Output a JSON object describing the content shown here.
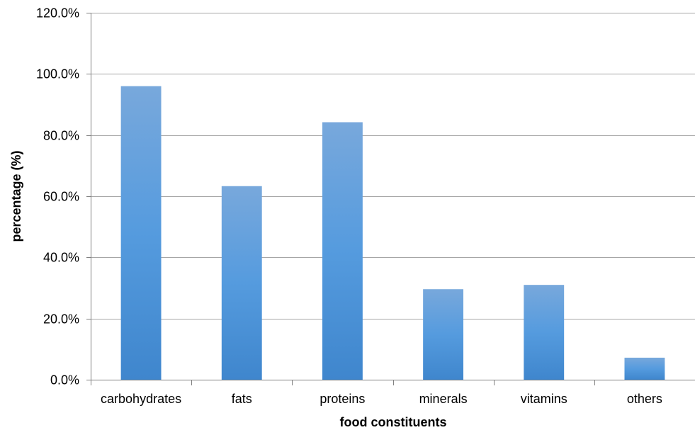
{
  "chart_data": {
    "type": "bar",
    "categories": [
      "carbohydrates",
      "fats",
      "proteins",
      "minerals",
      "vitamins",
      "others"
    ],
    "values": [
      96.0,
      63.3,
      84.2,
      29.6,
      31.0,
      7.2
    ],
    "title": "",
    "xlabel": "food constituents",
    "ylabel": "percentage (%)",
    "ylim": [
      0,
      120
    ],
    "yticks": [
      0,
      20,
      40,
      60,
      80,
      100,
      120
    ],
    "ytick_labels": [
      "0.0%",
      "20.0%",
      "40.0%",
      "60.0%",
      "80.0%",
      "100.0%",
      "120.0%"
    ],
    "grid": true,
    "legend": "none",
    "colors": {
      "bar_top": "#78a8dc",
      "bar_mid": "#559bde",
      "bar_bottom": "#3f86cd"
    }
  }
}
